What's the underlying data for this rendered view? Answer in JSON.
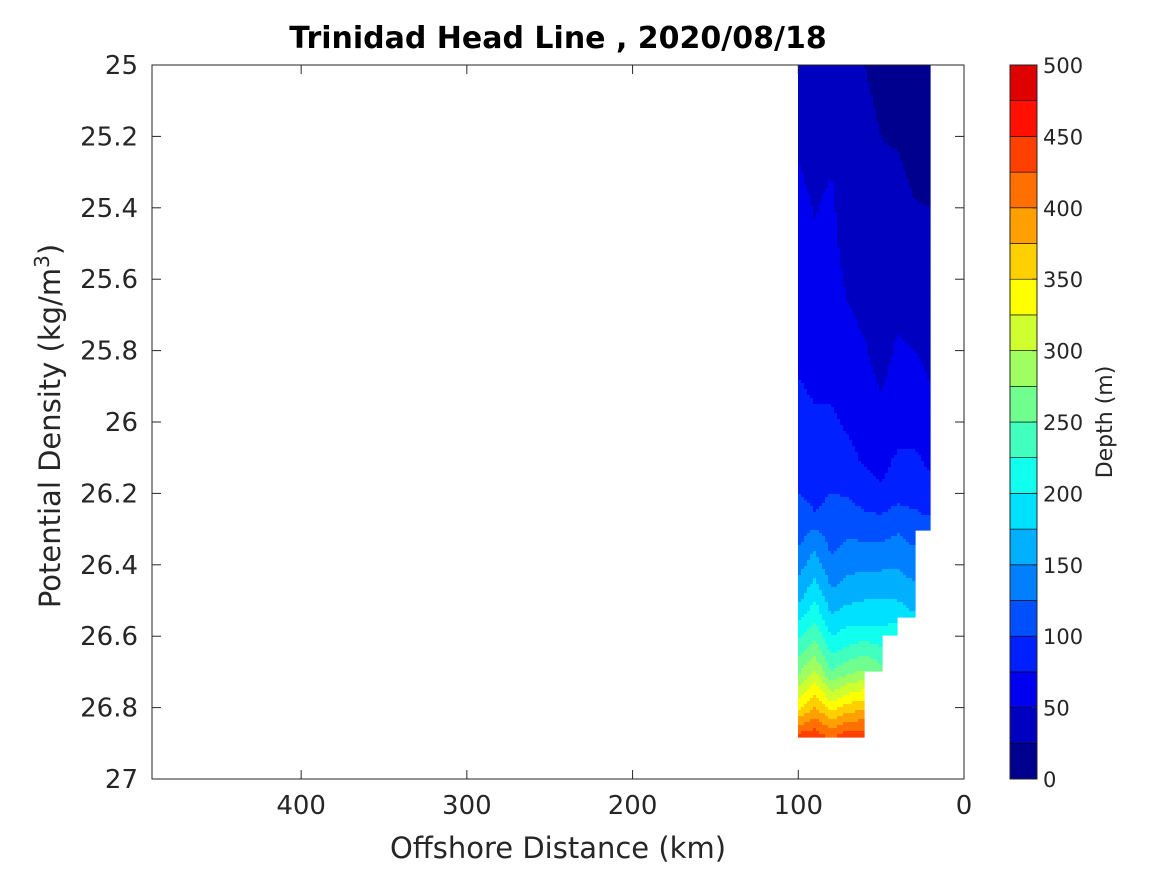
{
  "chart_data": {
    "type": "heatmap",
    "title": "Trinidad Head Line , 2020/08/18",
    "xlabel": "Offshore Distance (km)",
    "ylabel": "Potential Density (kg/m³)",
    "ylabel_parts": {
      "base": "Potential Density (kg/m",
      "sup": "3",
      "close": ")"
    },
    "xlim": [
      490,
      0
    ],
    "ylim": [
      25,
      27
    ],
    "x_reversed": true,
    "y_reversed": true,
    "x_ticks": [
      400,
      300,
      200,
      100,
      0
    ],
    "x_tick_labels": [
      "400",
      "300",
      "200",
      "100",
      "0"
    ],
    "y_ticks": [
      25,
      25.2,
      25.4,
      25.6,
      25.8,
      26,
      26.2,
      26.4,
      26.6,
      26.8,
      27
    ],
    "y_tick_labels": [
      "25",
      "25.2",
      "25.4",
      "25.6",
      "25.8",
      "26",
      "26.2",
      "26.4",
      "26.6",
      "26.8",
      "27"
    ],
    "grid": false,
    "colorbar": {
      "label": "Depth (m)",
      "range": [
        0,
        500
      ],
      "level_step": 25,
      "ticks": [
        0,
        50,
        100,
        150,
        200,
        250,
        300,
        350,
        400,
        450,
        500
      ],
      "tick_labels": [
        "0",
        "50",
        "100",
        "150",
        "200",
        "250",
        "300",
        "350",
        "400",
        "450",
        "500"
      ],
      "colors": [
        "#00008f",
        "#0000c0",
        "#0000f0",
        "#0020ff",
        "#0050ff",
        "#0080ff",
        "#00b0ff",
        "#00e0ff",
        "#10ffef",
        "#40ffbf",
        "#70ff8f",
        "#a0ff60",
        "#d0ff30",
        "#ffff00",
        "#ffd000",
        "#ffa000",
        "#ff7000",
        "#ff4000",
        "#ff1000",
        "#df0000"
      ]
    },
    "data_region": {
      "x_range_km": [
        20,
        100
      ],
      "sigma_range": [
        25,
        26.9
      ]
    },
    "contour_profiles": [
      {
        "x": 100,
        "depth_levels": [
          [
            25,
            40
          ],
          [
            25.8,
            70
          ],
          [
            26.1,
            90
          ],
          [
            26.3,
            110
          ],
          [
            26.4,
            140
          ],
          [
            26.5,
            170
          ],
          [
            26.6,
            220
          ],
          [
            26.7,
            270
          ],
          [
            26.8,
            340
          ],
          [
            26.9,
            460
          ]
        ]
      },
      {
        "x": 90,
        "depth_levels": [
          [
            25,
            35
          ],
          [
            25.72,
            60
          ],
          [
            26.03,
            80
          ],
          [
            26.25,
            100
          ],
          [
            26.33,
            140
          ],
          [
            26.45,
            180
          ],
          [
            26.55,
            220
          ],
          [
            26.65,
            270
          ],
          [
            26.75,
            340
          ],
          [
            26.88,
            440
          ]
        ]
      },
      {
        "x": 80,
        "depth_levels": [
          [
            25,
            35
          ],
          [
            25.3,
            50
          ],
          [
            25.9,
            70
          ],
          [
            26.1,
            90
          ],
          [
            26.3,
            110
          ],
          [
            26.4,
            130
          ],
          [
            26.5,
            160
          ],
          [
            26.6,
            200
          ],
          [
            26.7,
            250
          ],
          [
            26.8,
            340
          ],
          [
            26.88,
            420
          ]
        ]
      },
      {
        "x": 70,
        "depth_levels": [
          [
            25,
            30
          ],
          [
            25.5,
            40
          ],
          [
            26,
            70
          ],
          [
            26.15,
            90
          ],
          [
            26.27,
            110
          ],
          [
            26.35,
            130
          ],
          [
            26.47,
            160
          ],
          [
            26.55,
            190
          ],
          [
            26.62,
            220
          ],
          [
            26.7,
            270
          ],
          [
            26.8,
            360
          ],
          [
            26.88,
            440
          ]
        ]
      },
      {
        "x": 60,
        "depth_levels": [
          [
            25,
            25
          ],
          [
            25.6,
            40
          ],
          [
            26.1,
            70
          ],
          [
            26.25,
            100
          ],
          [
            26.35,
            130
          ],
          [
            26.45,
            160
          ],
          [
            26.55,
            190
          ],
          [
            26.62,
            230
          ],
          [
            26.7,
            280
          ],
          [
            26.8,
            370
          ],
          [
            26.9,
            460
          ]
        ]
      },
      {
        "x": 50,
        "depth_levels": [
          [
            25,
            20
          ],
          [
            25.8,
            40
          ],
          [
            26.15,
            70
          ],
          [
            26.26,
            100
          ],
          [
            26.35,
            130
          ],
          [
            26.45,
            160
          ],
          [
            26.55,
            190
          ],
          [
            26.62,
            220
          ],
          [
            26.7,
            260
          ]
        ]
      },
      {
        "x": 40,
        "depth_levels": [
          [
            25,
            15
          ],
          [
            25.6,
            40
          ],
          [
            26.05,
            70
          ],
          [
            26.23,
            100
          ],
          [
            26.33,
            130
          ],
          [
            26.45,
            160
          ],
          [
            26.55,
            190
          ],
          [
            26.6,
            230
          ]
        ]
      },
      {
        "x": 30,
        "depth_levels": [
          [
            25,
            10
          ],
          [
            25.5,
            30
          ],
          [
            25.95,
            60
          ],
          [
            26.2,
            90
          ],
          [
            26.33,
            120
          ],
          [
            26.45,
            150
          ],
          [
            26.55,
            180
          ]
        ]
      },
      {
        "x": 20,
        "depth_levels": [
          [
            25,
            5
          ],
          [
            25.4,
            25
          ],
          [
            25.9,
            50
          ],
          [
            26.2,
            80
          ],
          [
            26.3,
            110
          ]
        ]
      }
    ]
  }
}
